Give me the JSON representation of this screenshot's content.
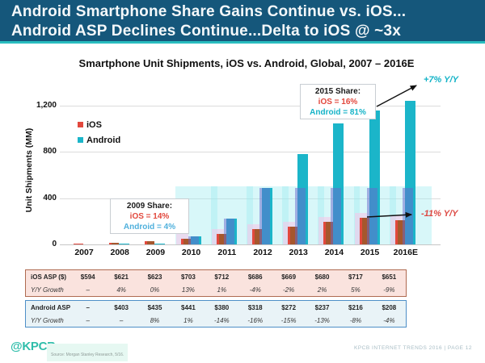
{
  "header": {
    "line1": "Android Smartphone Share Gains Continue vs. iOS...",
    "line2": "Android ASP Declines Continue...Delta to iOS @ ~3x"
  },
  "chart_data": {
    "type": "bar",
    "title": "Smartphone Unit Shipments, iOS vs. Android, Global, 2007 – 2016E",
    "ylabel": "Unit Shipments (MM)",
    "xlabel": "",
    "categories": [
      "2007",
      "2008",
      "2009",
      "2010",
      "2011",
      "2012",
      "2013",
      "2014",
      "2015",
      "2016E"
    ],
    "series": [
      {
        "name": "iOS",
        "color": "#E2483D",
        "values": [
          1,
          12,
          25,
          47,
          93,
          136,
          153,
          193,
          231,
          206
        ]
      },
      {
        "name": "Android",
        "color": "#1BB5C9",
        "values": [
          0,
          1,
          7,
          67,
          220,
          490,
          780,
          1046,
          1160,
          1241
        ]
      }
    ],
    "ylim": [
      0,
      1200
    ],
    "yticks": [
      "0",
      "400",
      "800",
      "1,200"
    ],
    "grid": true,
    "legend_position": "upper-left-inside",
    "annotations": {
      "share_2009": {
        "title": "2009 Share:",
        "ios": "iOS = 14%",
        "android": "Android = 4%"
      },
      "share_2015": {
        "title": "2015 Share:",
        "ios": "iOS = 16%",
        "android": "Android = 81%"
      },
      "android_growth": "+7% Y/Y",
      "ios_growth": "-11% Y/Y"
    }
  },
  "tables": {
    "ios_asp": {
      "rows": [
        {
          "label": "iOS ASP ($)",
          "values": [
            "$594",
            "$621",
            "$623",
            "$703",
            "$712",
            "$686",
            "$669",
            "$680",
            "$717",
            "$651"
          ]
        },
        {
          "label": "Y/Y Growth",
          "values": [
            "–",
            "4%",
            "0%",
            "13%",
            "1%",
            "-4%",
            "-2%",
            "2%",
            "5%",
            "-9%"
          ]
        }
      ]
    },
    "android_asp": {
      "rows": [
        {
          "label": "Android ASP",
          "values": [
            "–",
            "$403",
            "$435",
            "$441",
            "$380",
            "$318",
            "$272",
            "$237",
            "$216",
            "$208"
          ]
        },
        {
          "label": "Y/Y Growth",
          "values": [
            "–",
            "–",
            "8%",
            "1%",
            "-14%",
            "-16%",
            "-15%",
            "-13%",
            "-8%",
            "-4%"
          ]
        }
      ]
    }
  },
  "footer": {
    "logo": "@KPCB",
    "source": "Source: Morgan Stanley Research, 5/16.",
    "right": "KPCB INTERNET TRENDS 2016   |   PAGE 12"
  },
  "colors": {
    "header_bg": "#15577B",
    "header_accent": "#2ABDBF",
    "ios": "#E2483D",
    "android": "#1BB5C9",
    "android_light": "#4FB0DC",
    "ios_table_bg": "#FAE3DE",
    "ios_table_border": "#AF6A50",
    "android_table_bg": "#E9F3F7",
    "android_table_border": "#4E8FC7",
    "kpcb_logo": "#2EBDAA",
    "growth_up": "#14B3C7",
    "growth_down": "#DD4A44",
    "gridline": "#DBDBDB"
  }
}
